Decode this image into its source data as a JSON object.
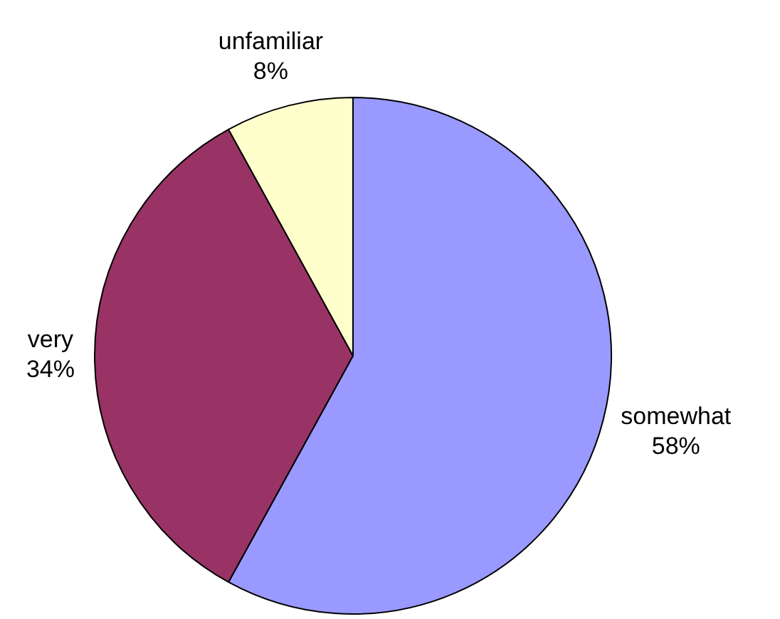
{
  "chart_data": {
    "type": "pie",
    "categories": [
      "somewhat",
      "very",
      "unfamiliar"
    ],
    "values": [
      58,
      34,
      8
    ],
    "colors": [
      "#9999ff",
      "#993366",
      "#ffffcc"
    ],
    "value_labels": [
      "58%",
      "34%",
      "8%"
    ],
    "legend": false
  }
}
